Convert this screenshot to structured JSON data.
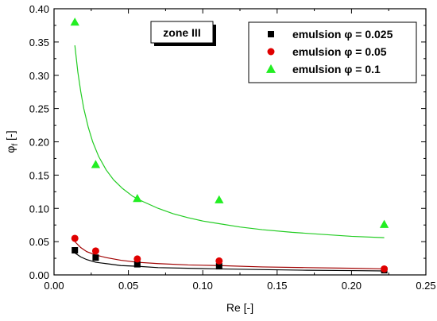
{
  "chart_data": {
    "type": "scatter",
    "xlabel": "Re [-]",
    "ylabel_main": "φ",
    "ylabel_sub": "f",
    "ylabel_tail": " [-]",
    "xlim": [
      0.0,
      0.25
    ],
    "ylim": [
      0.0,
      0.4
    ],
    "xticks": [
      0.0,
      0.05,
      0.1,
      0.15,
      0.2,
      0.25
    ],
    "xtick_labels": [
      "0.00",
      "0.05",
      "0.10",
      "0.15",
      "0.20",
      "0.25"
    ],
    "yticks": [
      0.0,
      0.05,
      0.1,
      0.15,
      0.2,
      0.25,
      0.3,
      0.35,
      0.4
    ],
    "ytick_labels": [
      "0.00",
      "0.05",
      "0.10",
      "0.15",
      "0.20",
      "0.25",
      "0.30",
      "0.35",
      "0.40"
    ],
    "grid": false,
    "annotation": "zone III",
    "legend_position": "top-right",
    "series": [
      {
        "name": "emulsion φ = 0.025",
        "marker": "square",
        "color": "#000000",
        "x": [
          0.014,
          0.028,
          0.056,
          0.111,
          0.222
        ],
        "y": [
          0.037,
          0.026,
          0.016,
          0.013,
          0.007
        ],
        "fit_color": "#000000",
        "fit_x": [
          0.014,
          0.018,
          0.022,
          0.028,
          0.035,
          0.045,
          0.056,
          0.07,
          0.09,
          0.111,
          0.14,
          0.17,
          0.2,
          0.222
        ],
        "fit_y": [
          0.033,
          0.027,
          0.023,
          0.019,
          0.017,
          0.014,
          0.013,
          0.011,
          0.01,
          0.009,
          0.008,
          0.007,
          0.0065,
          0.006
        ]
      },
      {
        "name": "emulsion φ = 0.05",
        "marker": "circle",
        "color": "#e00000",
        "x": [
          0.014,
          0.028,
          0.056,
          0.111,
          0.222
        ],
        "y": [
          0.055,
          0.036,
          0.024,
          0.021,
          0.009
        ],
        "fit_color": "#a00000",
        "fit_x": [
          0.014,
          0.018,
          0.022,
          0.028,
          0.035,
          0.045,
          0.056,
          0.07,
          0.09,
          0.111,
          0.14,
          0.17,
          0.2,
          0.222
        ],
        "fit_y": [
          0.05,
          0.041,
          0.035,
          0.03,
          0.026,
          0.022,
          0.019,
          0.017,
          0.015,
          0.014,
          0.012,
          0.011,
          0.01,
          0.009
        ]
      },
      {
        "name": "emulsion φ = 0.1",
        "marker": "triangle",
        "color": "#22ee22",
        "x": [
          0.014,
          0.028,
          0.056,
          0.111,
          0.222
        ],
        "y": [
          0.38,
          0.166,
          0.115,
          0.113,
          0.076
        ],
        "fit_color": "#22cc22",
        "fit_x": [
          0.014,
          0.016,
          0.018,
          0.02,
          0.023,
          0.026,
          0.03,
          0.035,
          0.04,
          0.046,
          0.053,
          0.06,
          0.07,
          0.08,
          0.09,
          0.1,
          0.111,
          0.125,
          0.14,
          0.16,
          0.18,
          0.2,
          0.222
        ],
        "fit_y": [
          0.345,
          0.305,
          0.275,
          0.25,
          0.222,
          0.2,
          0.178,
          0.158,
          0.143,
          0.13,
          0.118,
          0.11,
          0.1,
          0.092,
          0.086,
          0.081,
          0.077,
          0.072,
          0.068,
          0.064,
          0.061,
          0.058,
          0.056
        ]
      }
    ]
  }
}
